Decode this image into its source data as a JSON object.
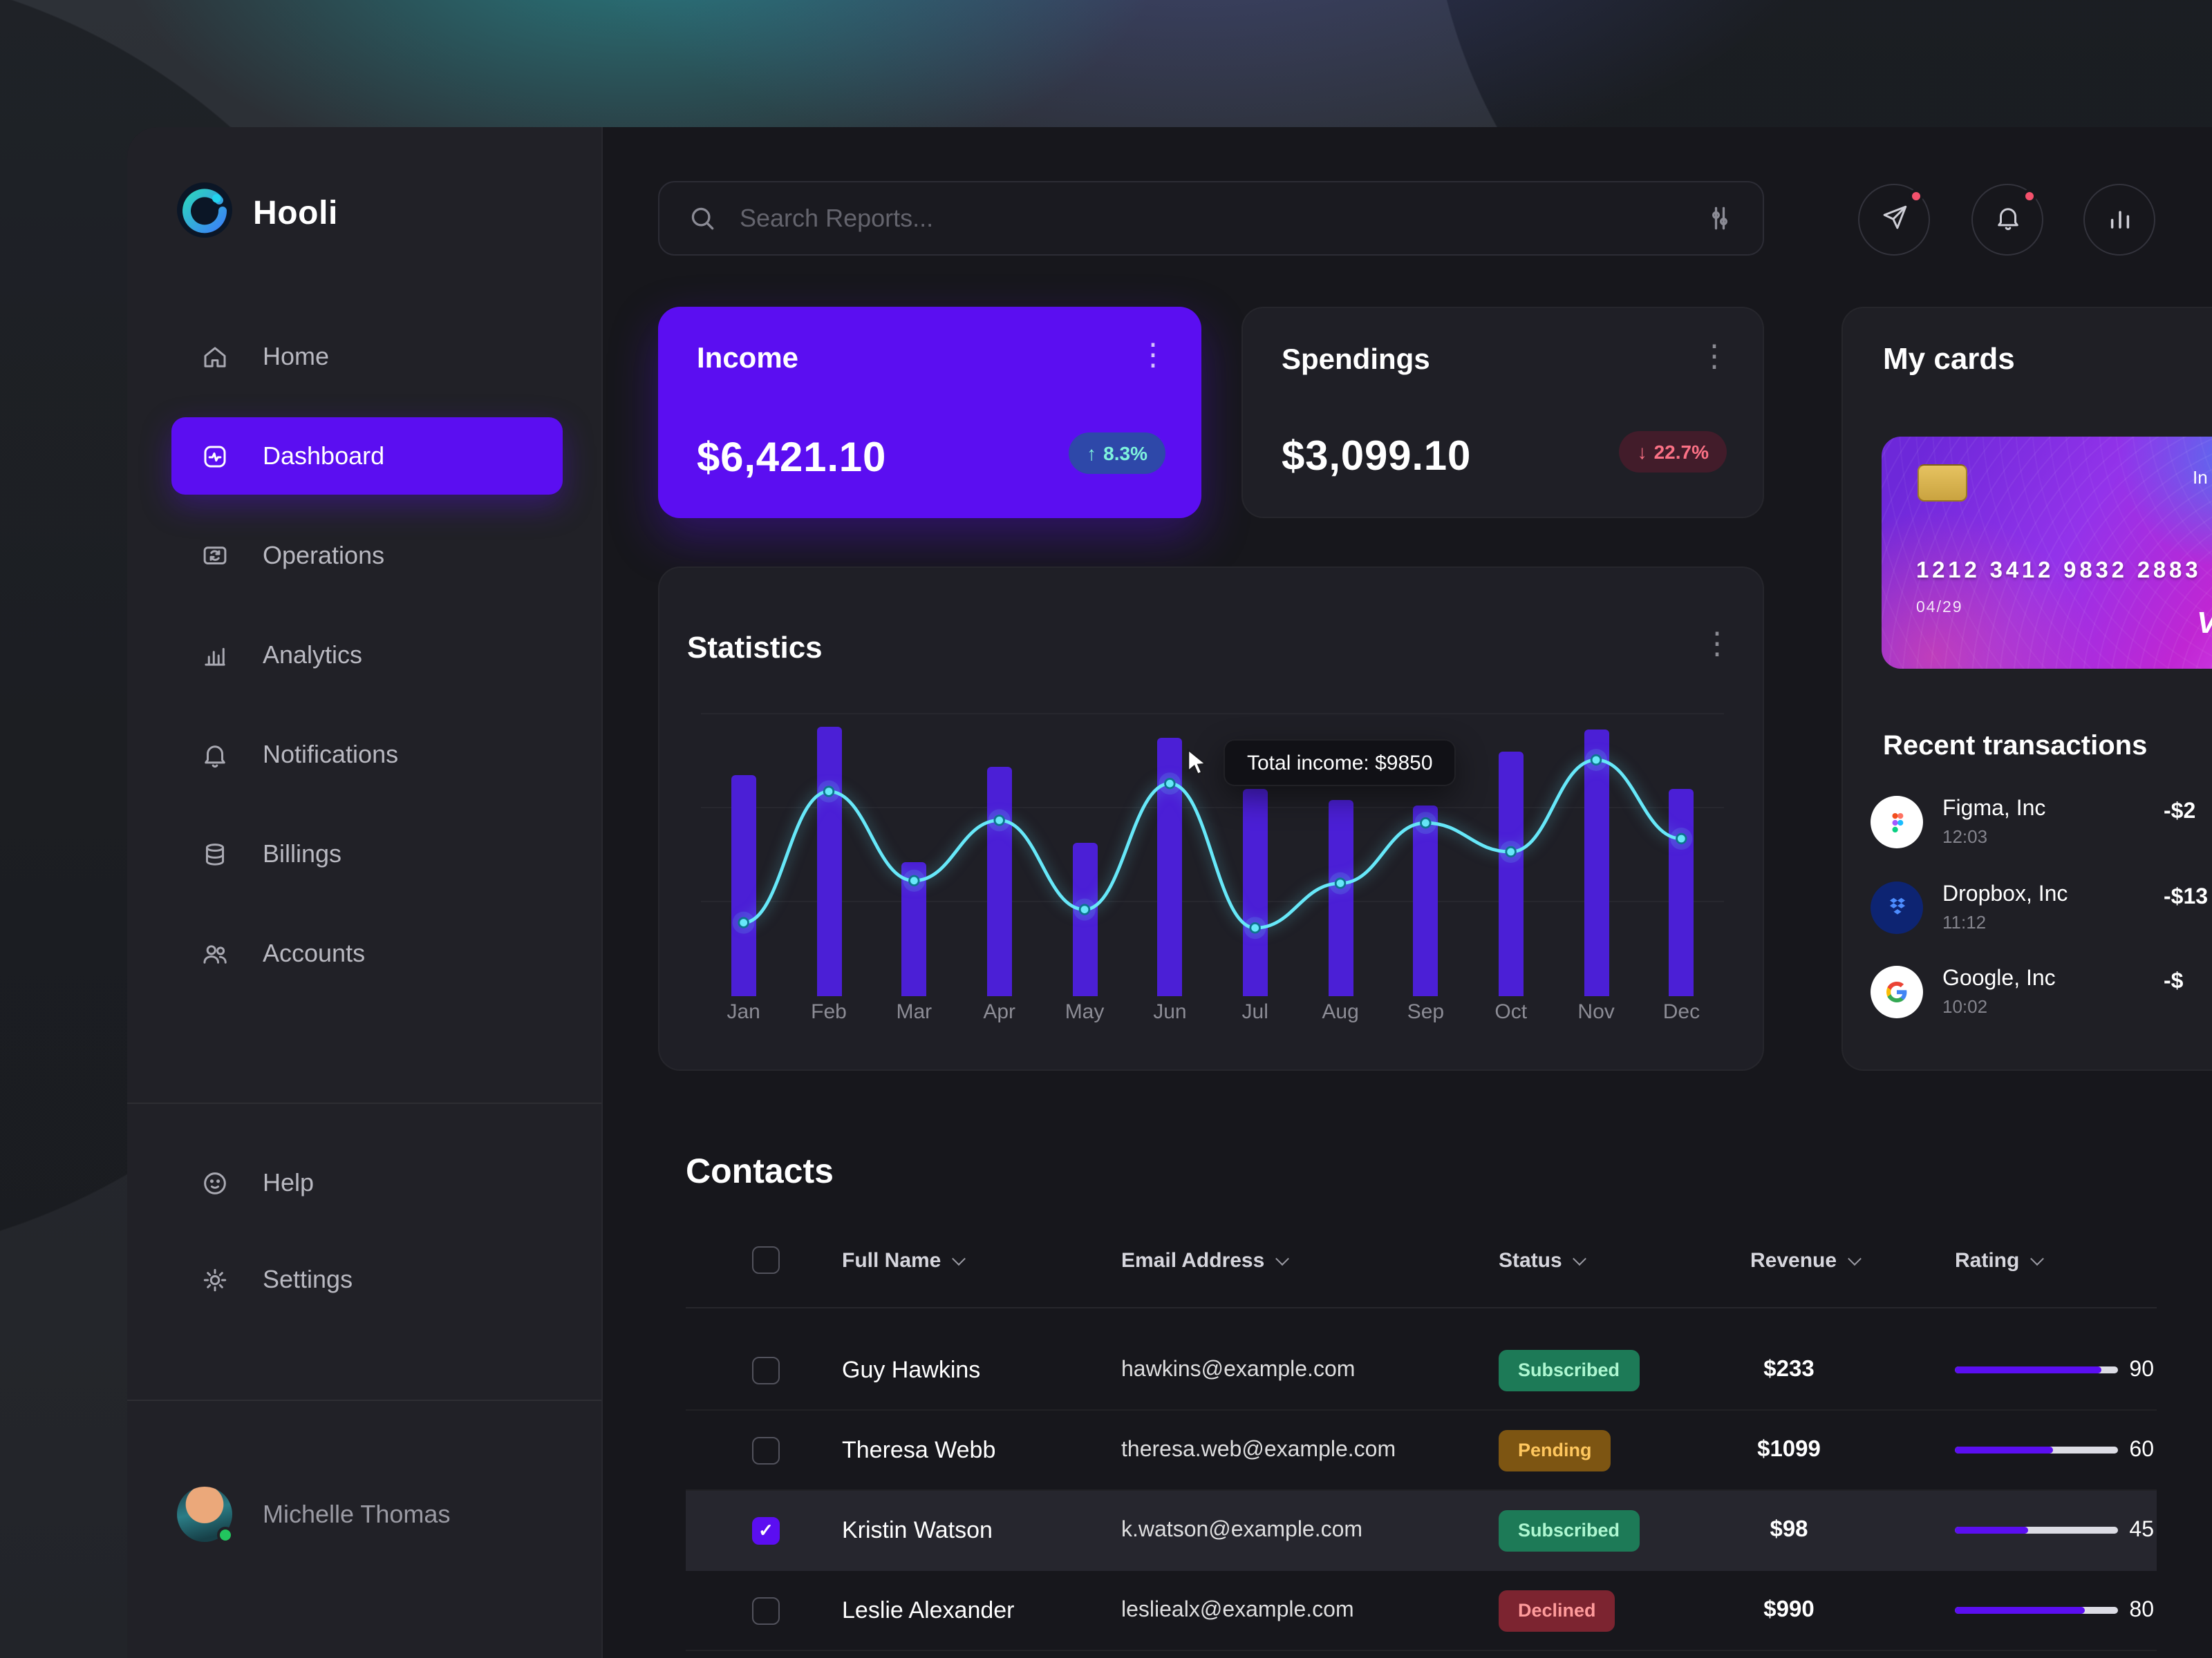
{
  "brand": {
    "name": "Hooli"
  },
  "topbar": {
    "search_placeholder": "Search Reports..."
  },
  "sidebar": {
    "nav": [
      {
        "label": "Home",
        "icon": "home",
        "active": false
      },
      {
        "label": "Dashboard",
        "icon": "dashboard",
        "active": true
      },
      {
        "label": "Operations",
        "icon": "operations",
        "active": false
      },
      {
        "label": "Analytics",
        "icon": "analytics",
        "active": false
      },
      {
        "label": "Notifications",
        "icon": "bell",
        "active": false
      },
      {
        "label": "Billings",
        "icon": "billings",
        "active": false
      },
      {
        "label": "Accounts",
        "icon": "accounts",
        "active": false
      }
    ],
    "secondary": [
      {
        "label": "Help",
        "icon": "help"
      },
      {
        "label": "Settings",
        "icon": "settings"
      }
    ],
    "user": {
      "name": "Michelle Thomas",
      "online": true
    }
  },
  "summary_cards": {
    "income": {
      "title": "Income",
      "value": "$6,421.10",
      "badge_arrow": "↑",
      "badge": "8.3%"
    },
    "spendings": {
      "title": "Spendings",
      "value": "$3,099.10",
      "badge_arrow": "↓",
      "badge": "22.7%"
    }
  },
  "statistics": {
    "title": "Statistics",
    "tooltip": "Total income: $9850",
    "chart_data": {
      "type": "bar",
      "categories": [
        "Jan",
        "Feb",
        "Mar",
        "Apr",
        "May",
        "Jun",
        "Jul",
        "Aug",
        "Sep",
        "Oct",
        "Nov",
        "Dec"
      ],
      "series": [
        {
          "name": "monthly-income-bars",
          "type": "bar",
          "values": [
            82,
            100,
            50,
            85,
            57,
            96,
            77,
            73,
            71,
            91,
            99,
            77
          ]
        },
        {
          "name": "income-trend-line",
          "type": "line",
          "values": [
            28,
            78,
            44,
            67,
            33,
            81,
            26,
            43,
            66,
            55,
            90,
            60
          ]
        }
      ],
      "units": "relative percent of plot height (no axis tick labels shown)",
      "annotations": [
        {
          "category": "Jun",
          "label": "Total income: $9850"
        }
      ],
      "legend": "none",
      "grid": "faint horizontal",
      "bar_color": "#4b1fd6",
      "line_color": "#67e8f9"
    }
  },
  "my_cards": {
    "title": "My cards",
    "card": {
      "number": "1212 3412 9832 2883",
      "expiry": "04/29",
      "top_right_text": "In",
      "brand_text": "V"
    }
  },
  "transactions": {
    "title": "Recent transactions",
    "items": [
      {
        "name": "Figma, Inc",
        "time": "12:03",
        "amount": "-$2",
        "icon": "figma"
      },
      {
        "name": "Dropbox, Inc",
        "time": "11:12",
        "amount": "-$13",
        "icon": "dropbox"
      },
      {
        "name": "Google, Inc",
        "time": "10:02",
        "amount": "-$",
        "icon": "google"
      }
    ]
  },
  "contacts": {
    "title": "Contacts",
    "columns": [
      "Full Name",
      "Email Address",
      "Status",
      "Revenue",
      "Rating"
    ],
    "rows": [
      {
        "name": "Guy Hawkins",
        "email": "hawkins@example.com",
        "status": "Subscribed",
        "revenue": "$233",
        "rating": 90,
        "checked": false,
        "selected": false
      },
      {
        "name": "Theresa Webb",
        "email": "theresa.web@example.com",
        "status": "Pending",
        "revenue": "$1099",
        "rating": 60,
        "checked": false,
        "selected": false
      },
      {
        "name": "Kristin Watson",
        "email": "k.watson@example.com",
        "status": "Subscribed",
        "revenue": "$98",
        "rating": 45,
        "checked": true,
        "selected": true
      },
      {
        "name": "Leslie Alexander",
        "email": "lesliealx@example.com",
        "status": "Declined",
        "revenue": "$990",
        "rating": 80,
        "checked": false,
        "selected": false
      }
    ]
  },
  "colors": {
    "accent": "#5b0ef1",
    "positive": "#2dd4bf",
    "negative": "#fb7185",
    "bar": "#4b1fd6",
    "line": "#67e8f9",
    "pill_subscribed": "#1d7a57",
    "pill_pending": "#7d5512",
    "pill_declined": "#7c2430"
  }
}
